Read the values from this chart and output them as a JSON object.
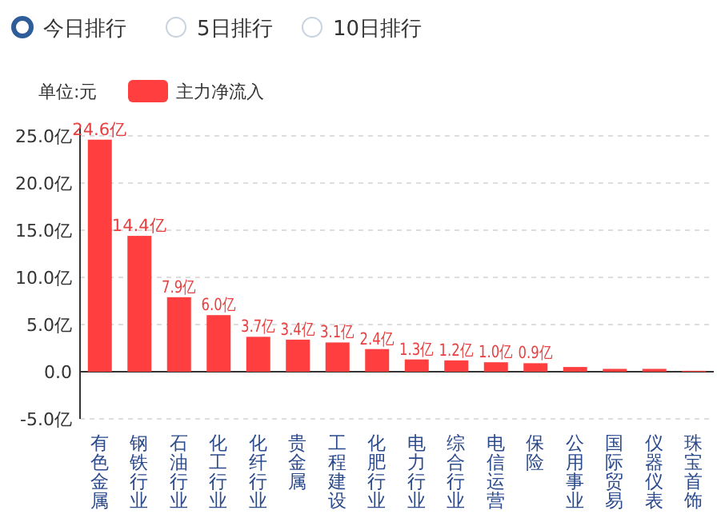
{
  "chart_data": {
    "type": "bar",
    "annotations": [
      "今日排行",
      "5日排行",
      "10日排行",
      "单位:元"
    ],
    "categories": [
      "有色金属",
      "钢铁行业",
      "石油行业",
      "化工行业",
      "化纤行业",
      "贵金属",
      "工程建设",
      "化肥行业",
      "电力行业",
      "综合行业",
      "电信运营",
      "保险",
      "公用事业",
      "国际贸易",
      "仪器仪表",
      "珠宝首饰"
    ],
    "series": [
      {
        "name": "主力净流入",
        "color": "#ff3f3f",
        "values": [
          24.6,
          14.4,
          7.9,
          6.0,
          3.7,
          3.4,
          3.1,
          2.4,
          1.3,
          1.2,
          1.0,
          0.9,
          0.5,
          0.3,
          0.3,
          0.1
        ],
        "value_labels": [
          "24.6亿",
          "14.4亿",
          "7.9亿",
          "6.0亿",
          "3.7亿",
          "3.4亿",
          "3.1亿",
          "2.4亿",
          "1.3亿",
          "1.2亿",
          "1.0亿",
          "0.9亿",
          null,
          null,
          null,
          null
        ]
      }
    ],
    "ylim": [
      -5,
      25
    ],
    "yticks": [
      {
        "value": -5,
        "label": "-5.0亿"
      },
      {
        "value": 0,
        "label": "0.0"
      },
      {
        "value": 5,
        "label": "5.0亿"
      },
      {
        "value": 10,
        "label": "10.0亿"
      },
      {
        "value": 15,
        "label": "15.0亿"
      },
      {
        "value": 20,
        "label": "20.0亿"
      },
      {
        "value": 25,
        "label": "25.0亿"
      }
    ],
    "grid": "y",
    "legend": "top left"
  }
}
